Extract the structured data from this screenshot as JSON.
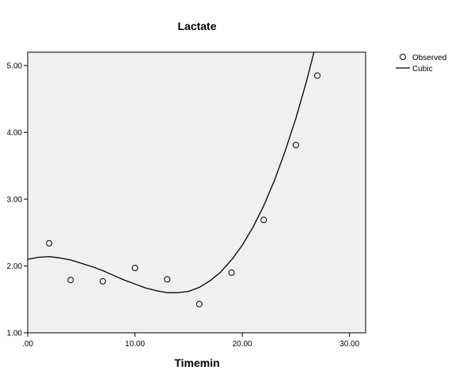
{
  "chart_data": {
    "type": "scatter",
    "title": "Lactate",
    "xlabel": "Timemin",
    "ylabel": "",
    "xlim": [
      0,
      31.5
    ],
    "ylim": [
      1.0,
      5.2
    ],
    "xticks": [
      0,
      10,
      20,
      30
    ],
    "xtick_labels": [
      ".00",
      "10.00",
      "20.00",
      "30.00"
    ],
    "yticks": [
      1,
      2,
      3,
      4,
      5
    ],
    "ytick_labels": [
      "1.00",
      "2.00",
      "3.00",
      "4.00",
      "5.00"
    ],
    "grid": false,
    "legend_position": "top-right",
    "series": [
      {
        "name": "Observed",
        "kind": "points",
        "marker": "open-circle",
        "x": [
          2,
          4,
          7,
          10,
          13,
          16,
          19,
          22,
          25,
          27
        ],
        "y": [
          2.34,
          1.79,
          1.77,
          1.97,
          1.8,
          1.43,
          1.9,
          2.69,
          3.81,
          4.85
        ]
      },
      {
        "name": "Cubic",
        "kind": "line",
        "x": [
          0,
          1,
          2,
          3,
          4,
          5,
          6,
          7,
          8,
          9,
          10,
          11,
          12,
          13,
          14,
          15,
          16,
          17,
          18,
          19,
          20,
          21,
          22,
          23,
          24,
          25,
          26,
          27,
          27.5
        ],
        "y": [
          2.1,
          2.13,
          2.14,
          2.12,
          2.09,
          2.04,
          1.99,
          1.93,
          1.86,
          1.79,
          1.73,
          1.67,
          1.63,
          1.6,
          1.6,
          1.62,
          1.68,
          1.78,
          1.91,
          2.09,
          2.31,
          2.58,
          2.9,
          3.28,
          3.72,
          4.21,
          4.77,
          5.4,
          5.72
        ]
      }
    ]
  },
  "colors": {
    "plot_background": "#f0f0f0",
    "axis": "#000000",
    "line": "#000000",
    "marker_stroke": "#000000"
  }
}
